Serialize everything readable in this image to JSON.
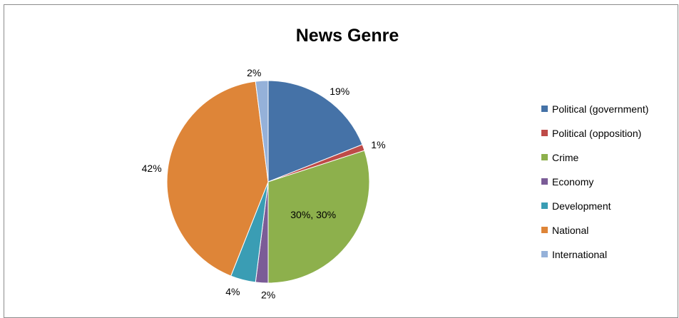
{
  "chart_data": {
    "type": "pie",
    "title": "News Genre",
    "legend_position": "right",
    "slices": [
      {
        "name": "Political (government)",
        "value": 19,
        "label": "19%",
        "color": "#4572A7"
      },
      {
        "name": "Political (opposition)",
        "value": 1,
        "label": "1%",
        "color": "#BE4B48"
      },
      {
        "name": "Crime",
        "value": 30,
        "label": "30%, 30%",
        "color": "#8DB04C"
      },
      {
        "name": "Economy",
        "value": 2,
        "label": "2%",
        "color": "#7B5C97"
      },
      {
        "name": "Development",
        "value": 4,
        "label": "4%",
        "color": "#3A9DB4"
      },
      {
        "name": "National",
        "value": 42,
        "label": "42%",
        "color": "#DE8538"
      },
      {
        "name": "International",
        "value": 2,
        "label": "2%",
        "color": "#95B1D9"
      }
    ]
  }
}
